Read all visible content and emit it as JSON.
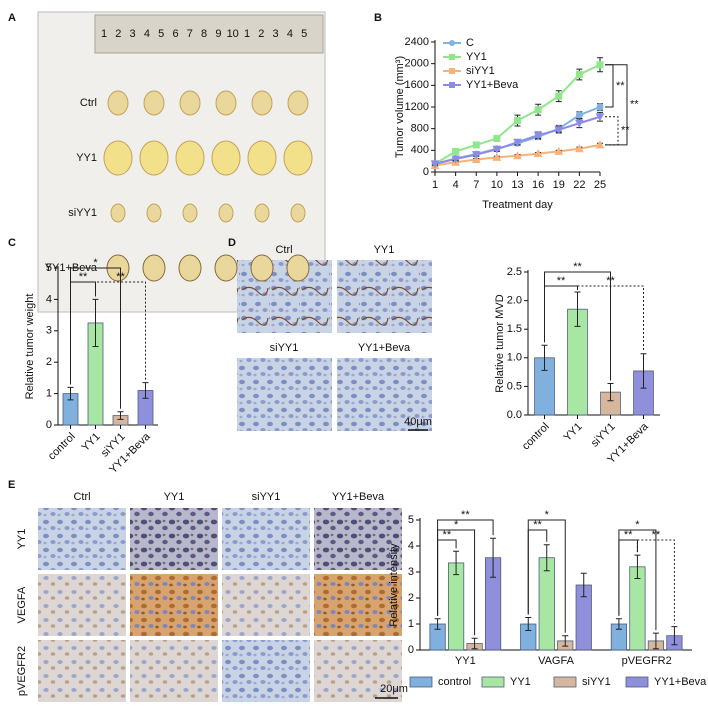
{
  "panel_labels": [
    "A",
    "B",
    "C",
    "D",
    "E"
  ],
  "figure_a": {
    "ruler": [
      "1",
      "2",
      "3",
      "4",
      "5",
      "6",
      "7",
      "8",
      "9",
      "10",
      "1",
      "2",
      "3",
      "4",
      "5"
    ],
    "rows": [
      "Ctrl",
      "YY1",
      "siYY1",
      "YY1+Beva"
    ]
  },
  "figure_d_images": {
    "labels": [
      "Ctrl",
      "YY1",
      "siYY1",
      "YY1+Beva"
    ],
    "scale": "40μm"
  },
  "figure_e_images": {
    "columns": [
      "Ctrl",
      "YY1",
      "siYY1",
      "YY1+Beva"
    ],
    "rows": [
      "YY1",
      "VEGFA",
      "pVEGFR2"
    ],
    "scale": "20μm"
  },
  "chart_data": [
    {
      "type": "line",
      "ylabel": "Tumor volume (mm³)",
      "xlabel": "Treatment day",
      "x": [
        1,
        4,
        7,
        10,
        13,
        16,
        19,
        22,
        25
      ],
      "xlim": [
        1,
        25
      ],
      "xticks": [
        1,
        4,
        7,
        10,
        13,
        16,
        19,
        22,
        25
      ],
      "ylim": [
        0,
        2400
      ],
      "yticks": [
        0,
        400,
        800,
        1200,
        1600,
        2000,
        2400
      ],
      "legend": "upper left",
      "series": [
        {
          "name": "C",
          "color": "#7fb3e0",
          "marker": "circle",
          "values": [
            150,
            250,
            330,
            430,
            530,
            650,
            800,
            1050,
            1200
          ],
          "errors": [
            20,
            30,
            30,
            40,
            40,
            50,
            60,
            60,
            60
          ]
        },
        {
          "name": "YY1",
          "color": "#8ee88a",
          "marker": "square",
          "values": [
            150,
            380,
            500,
            620,
            950,
            1150,
            1400,
            1800,
            1980
          ],
          "errors": [
            20,
            40,
            40,
            50,
            100,
            100,
            100,
            100,
            130
          ]
        },
        {
          "name": "siYY1",
          "color": "#f5b27a",
          "marker": "triangle",
          "values": [
            120,
            180,
            230,
            270,
            300,
            340,
            380,
            430,
            500
          ],
          "errors": [
            10,
            20,
            20,
            20,
            20,
            20,
            20,
            30,
            30
          ]
        },
        {
          "name": "YY1+Beva",
          "color": "#8c8ce8",
          "marker": "triangle-down",
          "values": [
            150,
            240,
            320,
            420,
            550,
            680,
            780,
            900,
            1020
          ],
          "errors": [
            20,
            30,
            30,
            40,
            50,
            60,
            60,
            80,
            80
          ]
        }
      ],
      "annotations": [
        "**",
        "**",
        "**"
      ]
    },
    {
      "type": "bar",
      "ylabel": "Relative tumor weight",
      "categories": [
        "control",
        "YY1",
        "siYY1",
        "YY1+Beva"
      ],
      "values": [
        1.0,
        3.25,
        0.3,
        1.1
      ],
      "errors": [
        0.2,
        0.75,
        0.12,
        0.25
      ],
      "colors": [
        "#7fb0de",
        "#a8e6a3",
        "#d6b79e",
        "#8f8fdc"
      ],
      "ylim": [
        0,
        5
      ],
      "yticks": [
        0,
        1,
        2,
        3,
        4,
        5
      ],
      "annotations": [
        "*",
        "**",
        "**"
      ]
    },
    {
      "type": "bar",
      "ylabel": "Relative tumor MVD",
      "categories": [
        "control",
        "YY1",
        "siYY1",
        "YY1+Beva"
      ],
      "values": [
        1.0,
        1.85,
        0.4,
        0.77
      ],
      "errors": [
        0.22,
        0.3,
        0.15,
        0.3
      ],
      "colors": [
        "#7fb0de",
        "#a8e6a3",
        "#d6b79e",
        "#8f8fdc"
      ],
      "ylim": [
        0,
        2.5
      ],
      "yticks": [
        {
          "value": 0,
          "label": "0.0"
        },
        0.5,
        {
          "value": 1,
          "label": "1.0"
        },
        1.5,
        {
          "value": 2,
          "label": "2.0"
        },
        2.5
      ],
      "annotations": [
        "**",
        "**",
        "**"
      ]
    },
    {
      "type": "grouped_bar",
      "ylabel": "Relative intensity",
      "categories": [
        "YY1",
        "VAGFA",
        "pVEGFR2"
      ],
      "series": [
        {
          "name": "control",
          "color": "#7fb0de",
          "values": [
            1.0,
            1.0,
            1.0
          ],
          "errors": [
            0.2,
            0.25,
            0.2
          ]
        },
        {
          "name": "YY1",
          "color": "#a8e6a3",
          "values": [
            3.35,
            3.55,
            3.2
          ],
          "errors": [
            0.45,
            0.5,
            0.45
          ]
        },
        {
          "name": "siYY1",
          "color": "#d6b79e",
          "values": [
            0.25,
            0.35,
            0.35
          ],
          "errors": [
            0.2,
            0.2,
            0.3
          ]
        },
        {
          "name": "YY1+Beva",
          "color": "#8f8fdc",
          "values": [
            3.55,
            2.5,
            0.55
          ],
          "errors": [
            0.75,
            0.45,
            0.35
          ]
        }
      ],
      "legend": "bottom",
      "ylim": [
        0,
        5
      ],
      "yticks": [
        0,
        1,
        2,
        3,
        4,
        5
      ],
      "annotations": [
        "**",
        "*",
        "**",
        "**",
        "*",
        "**",
        "*",
        "**"
      ]
    }
  ]
}
